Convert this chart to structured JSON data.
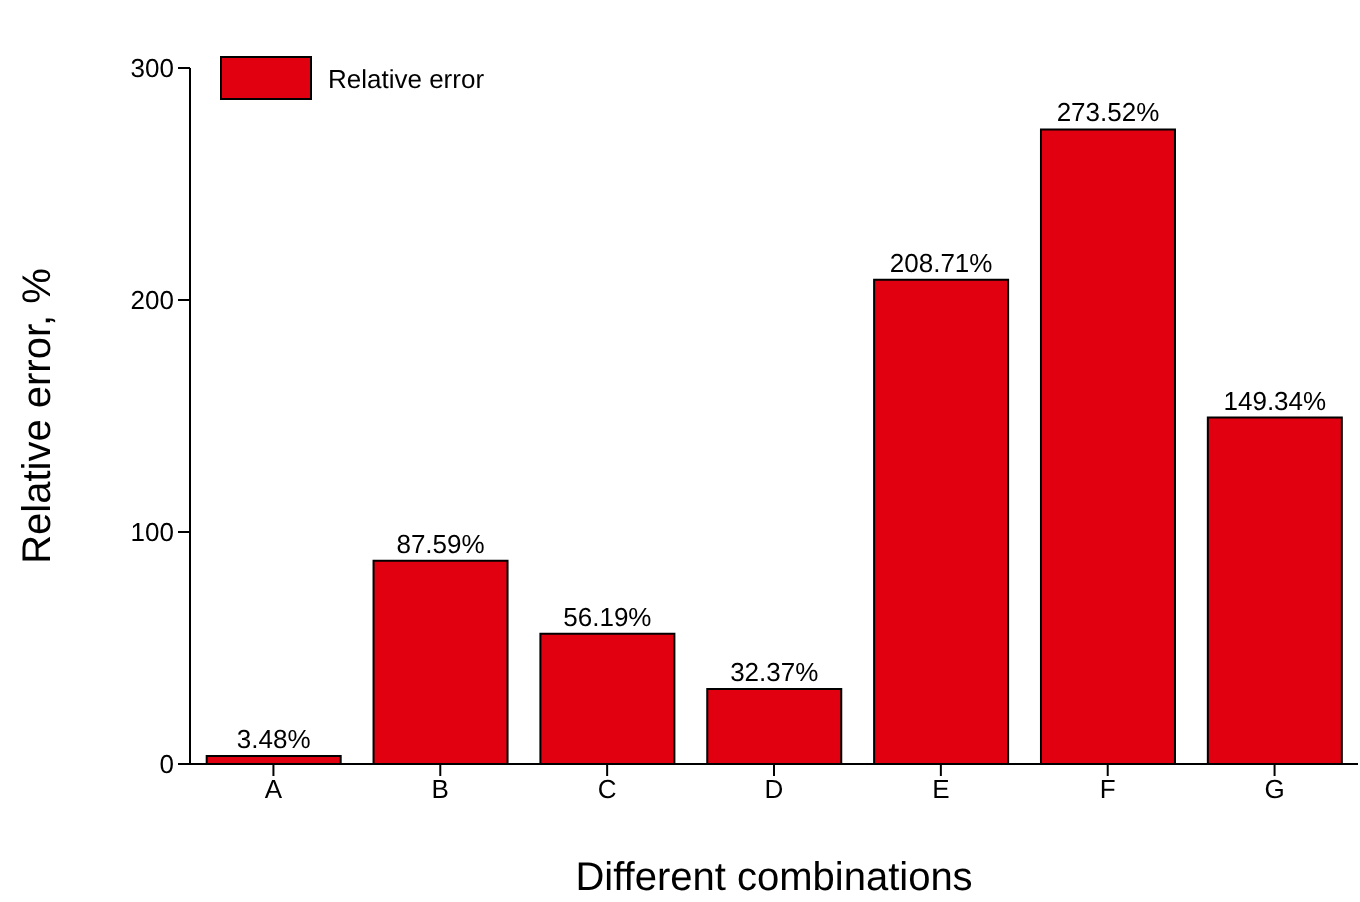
{
  "chart_data": {
    "type": "bar",
    "xlabel": "Different combinations",
    "ylabel": "Relative error, %",
    "categories": [
      "A",
      "B",
      "C",
      "D",
      "E",
      "F",
      "G"
    ],
    "series": [
      {
        "name": "Relative error",
        "color": "#e0000f",
        "values": [
          3.48,
          87.59,
          56.19,
          32.37,
          208.71,
          273.52,
          149.34
        ],
        "value_labels": [
          "3.48%",
          "87.59%",
          "56.19%",
          "32.37%",
          "208.71%",
          "273.52%",
          "149.34%"
        ]
      }
    ],
    "ylim": [
      0,
      300
    ],
    "yticks": [
      0,
      100,
      200,
      300
    ],
    "grid": false,
    "legend": "top left"
  }
}
